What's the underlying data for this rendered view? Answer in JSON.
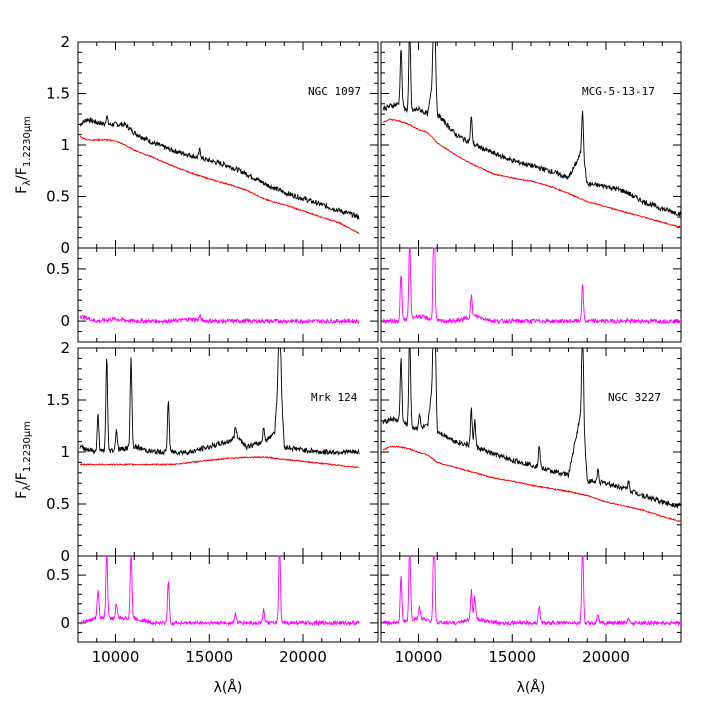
{
  "colors": {
    "observed": "#000000",
    "model": "#ff0000",
    "residual": "#ff00ff"
  },
  "axes": {
    "xlabel": "λ(Å)",
    "ylabel_main": "F",
    "ylabel_sub1": "λ",
    "ylabel_mid": "/F",
    "ylabel_sub2": "1.2230μm",
    "xticklabels": [
      "10000",
      "15000",
      "20000"
    ],
    "yticklabels_top": [
      "0",
      "0.5",
      "1",
      "1.5",
      "2"
    ],
    "yticklabels_res": [
      "0",
      "0.5"
    ]
  },
  "chart_data": [
    {
      "type": "line",
      "panel": "NGC 1097",
      "xlim": [
        8000,
        24000
      ],
      "ylim": [
        0,
        2
      ],
      "residual_ylim": [
        -0.2,
        0.7
      ],
      "series": [
        {
          "role": "observed",
          "x": [
            8100,
            8500,
            9000,
            9500,
            10000,
            10500,
            11000,
            12000,
            13000,
            14000,
            15000,
            16000,
            17000,
            18000,
            19000,
            20000,
            21000,
            22000,
            23000
          ],
          "values": [
            1.2,
            1.25,
            1.22,
            1.2,
            1.2,
            1.2,
            1.12,
            1.02,
            0.95,
            0.9,
            0.85,
            0.8,
            0.72,
            0.62,
            0.54,
            0.48,
            0.42,
            0.36,
            0.3
          ]
        },
        {
          "role": "model",
          "x": [
            8100,
            8500,
            9000,
            9500,
            10000,
            10500,
            11000,
            12000,
            13000,
            14000,
            15000,
            16000,
            17000,
            18000,
            19000,
            20000,
            21000,
            22000,
            23000
          ],
          "values": [
            1.08,
            1.05,
            1.05,
            1.05,
            1.04,
            1.0,
            0.95,
            0.88,
            0.8,
            0.73,
            0.67,
            0.62,
            0.56,
            0.47,
            0.42,
            0.36,
            0.3,
            0.24,
            0.14
          ]
        },
        {
          "role": "residual",
          "x": [
            8100,
            9000,
            10000,
            11000,
            12000,
            13000,
            14000,
            15000,
            16000,
            17000,
            18000,
            19000,
            20000,
            21000,
            22000,
            23000
          ],
          "values": [
            0.05,
            0.0,
            0.02,
            0.0,
            0.0,
            0.0,
            0.02,
            0.0,
            0.0,
            0.0,
            0.0,
            0.0,
            0.0,
            0.0,
            0.0,
            0.0
          ]
        }
      ]
    },
    {
      "type": "line",
      "panel": "MCG-5-13-17",
      "xlim": [
        8000,
        24000
      ],
      "ylim": [
        0,
        2
      ],
      "residual_ylim": [
        -0.2,
        0.7
      ],
      "series": [
        {
          "role": "observed",
          "x": [
            8100,
            8500,
            9000,
            9500,
            10000,
            10500,
            10900,
            11000,
            12000,
            13000,
            14000,
            15000,
            16000,
            17000,
            18000,
            18750,
            19000,
            20000,
            21000,
            22000,
            23000,
            24000
          ],
          "values": [
            1.35,
            1.38,
            1.4,
            1.32,
            1.35,
            1.3,
            1.8,
            1.3,
            1.1,
            1.0,
            0.92,
            0.85,
            0.8,
            0.75,
            0.68,
            0.95,
            0.62,
            0.6,
            0.55,
            0.45,
            0.38,
            0.33
          ]
        },
        {
          "role": "model",
          "x": [
            8100,
            8500,
            9000,
            9500,
            10000,
            10500,
            11000,
            12000,
            13000,
            14000,
            15000,
            16000,
            17000,
            18000,
            19000,
            20000,
            21000,
            22000,
            23000,
            24000
          ],
          "values": [
            1.22,
            1.25,
            1.23,
            1.2,
            1.15,
            1.12,
            1.02,
            0.9,
            0.8,
            0.72,
            0.68,
            0.65,
            0.6,
            0.53,
            0.45,
            0.4,
            0.35,
            0.3,
            0.25,
            0.2
          ]
        },
        {
          "role": "residual",
          "x": [
            8100,
            9000,
            10000,
            11000,
            12000,
            13000,
            14000,
            15000,
            16000,
            17000,
            18000,
            19000,
            20000,
            21000,
            22000,
            23000,
            24000
          ],
          "values": [
            0.0,
            0.0,
            0.05,
            0.0,
            0.0,
            0.05,
            0.0,
            0.0,
            0.0,
            0.0,
            0.0,
            0.0,
            0.0,
            0.0,
            0.0,
            0.0,
            0.0
          ]
        }
      ]
    },
    {
      "type": "line",
      "panel": "Mrk 124",
      "xlim": [
        8000,
        24000
      ],
      "ylim": [
        0,
        2
      ],
      "residual_ylim": [
        -0.2,
        0.7
      ],
      "series": [
        {
          "role": "observed",
          "x": [
            8100,
            9000,
            10000,
            11000,
            12000,
            13000,
            14000,
            15000,
            16000,
            16500,
            17000,
            18000,
            18500,
            18750,
            19000,
            20000,
            21000,
            22000,
            23000
          ],
          "values": [
            1.05,
            1.0,
            1.02,
            1.05,
            1.0,
            1.0,
            1.0,
            1.05,
            1.1,
            1.15,
            1.05,
            1.1,
            1.2,
            1.95,
            1.05,
            1.02,
            1.0,
            1.0,
            1.0
          ]
        },
        {
          "role": "model",
          "x": [
            8100,
            9000,
            10000,
            11000,
            12000,
            13000,
            14000,
            15000,
            16000,
            17000,
            18000,
            19000,
            20000,
            21000,
            22000,
            23000
          ],
          "values": [
            0.88,
            0.88,
            0.88,
            0.88,
            0.88,
            0.88,
            0.9,
            0.92,
            0.94,
            0.95,
            0.95,
            0.93,
            0.91,
            0.89,
            0.87,
            0.85
          ]
        },
        {
          "role": "residual",
          "x": [
            8100,
            9000,
            10000,
            11000,
            12000,
            13000,
            14000,
            15000,
            16000,
            17000,
            18000,
            19000,
            20000,
            21000,
            22000,
            23000
          ],
          "values": [
            0.0,
            0.05,
            0.05,
            0.05,
            0.0,
            0.0,
            0.0,
            0.0,
            0.0,
            0.0,
            0.0,
            0.0,
            0.0,
            0.0,
            0.0,
            0.0
          ]
        }
      ]
    },
    {
      "type": "line",
      "panel": "NGC 3227",
      "xlim": [
        8000,
        24000
      ],
      "ylim": [
        0,
        2
      ],
      "residual_ylim": [
        -0.2,
        0.7
      ],
      "series": [
        {
          "role": "observed",
          "x": [
            8100,
            8500,
            9000,
            9500,
            10000,
            10500,
            10900,
            11000,
            12000,
            13000,
            14000,
            15000,
            16000,
            17000,
            18000,
            18750,
            19000,
            20000,
            21000,
            22000,
            23000,
            24000
          ],
          "values": [
            1.28,
            1.32,
            1.3,
            1.25,
            1.22,
            1.25,
            1.95,
            1.2,
            1.1,
            1.05,
            0.98,
            0.92,
            0.88,
            0.82,
            0.78,
            1.45,
            0.72,
            0.7,
            0.65,
            0.58,
            0.52,
            0.48
          ]
        },
        {
          "role": "model",
          "x": [
            8100,
            8500,
            9000,
            9500,
            10000,
            10500,
            11000,
            12000,
            13000,
            14000,
            15000,
            16000,
            17000,
            18000,
            19000,
            20000,
            21000,
            22000,
            23000,
            24000
          ],
          "values": [
            1.02,
            1.05,
            1.05,
            1.03,
            1.0,
            0.97,
            0.9,
            0.85,
            0.8,
            0.75,
            0.72,
            0.68,
            0.65,
            0.62,
            0.58,
            0.52,
            0.48,
            0.44,
            0.38,
            0.33
          ]
        },
        {
          "role": "residual",
          "x": [
            8100,
            9000,
            10000,
            11000,
            12000,
            13000,
            14000,
            15000,
            16000,
            17000,
            18000,
            19000,
            20000,
            21000,
            22000,
            23000,
            24000
          ],
          "values": [
            0.0,
            0.0,
            0.05,
            0.0,
            0.0,
            0.05,
            0.0,
            0.0,
            0.0,
            0.0,
            0.0,
            0.0,
            0.0,
            0.0,
            0.0,
            0.0,
            0.0
          ]
        }
      ]
    }
  ],
  "emission_lines": {
    "MCG-5-13-17": [
      [
        9069,
        0.55,
        0.45
      ],
      [
        9531,
        0.9,
        0.75
      ],
      [
        10830,
        1.4,
        1.2
      ],
      [
        12818,
        0.25,
        0.2
      ],
      [
        18751,
        0.4,
        0.35
      ]
    ],
    "Mrk 124": [
      [
        9069,
        0.35,
        0.3
      ],
      [
        9531,
        0.9,
        0.7
      ],
      [
        10830,
        0.85,
        0.7
      ],
      [
        10050,
        0.2,
        0.15
      ],
      [
        12818,
        0.5,
        0.45
      ],
      [
        18751,
        0.9,
        0.85
      ],
      [
        16400,
        0.1,
        0.1
      ],
      [
        17900,
        0.15,
        0.15
      ]
    ],
    "NGC 3227": [
      [
        9069,
        0.6,
        0.5
      ],
      [
        9531,
        0.95,
        0.8
      ],
      [
        10830,
        1.3,
        1.1
      ],
      [
        10050,
        0.15,
        0.12
      ],
      [
        12818,
        0.35,
        0.3
      ],
      [
        13000,
        0.25,
        0.22
      ],
      [
        16440,
        0.2,
        0.18
      ],
      [
        18751,
        0.9,
        0.8
      ],
      [
        19570,
        0.12,
        0.1
      ],
      [
        21200,
        0.08,
        0.06
      ]
    ],
    "NGC 1097": [
      [
        9531,
        0.08,
        0.0
      ],
      [
        14500,
        0.08,
        0.04
      ]
    ]
  }
}
